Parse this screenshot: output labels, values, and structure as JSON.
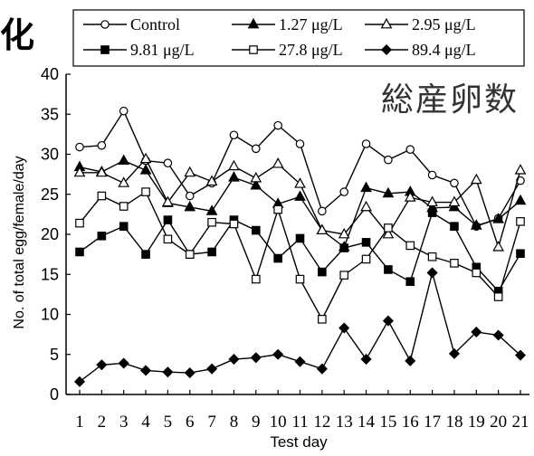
{
  "overlay": {
    "stray_title_fragment": "化",
    "japanese_title": "総産卵数"
  },
  "chart_data": {
    "type": "line",
    "title": "総産卵数",
    "xlabel": "Test day",
    "ylabel": "No. of total egg/female/day",
    "x": [
      1,
      2,
      3,
      4,
      5,
      6,
      7,
      8,
      9,
      10,
      11,
      12,
      13,
      14,
      15,
      16,
      17,
      18,
      19,
      20,
      21
    ],
    "xticks": [
      "1",
      "2",
      "3",
      "4",
      "5",
      "6",
      "7",
      "8",
      "9",
      "10",
      "11",
      "12",
      "13",
      "14",
      "15",
      "16",
      "17",
      "18",
      "19",
      "20",
      "21"
    ],
    "ylim": [
      0,
      40
    ],
    "yticks": [
      "0",
      "5",
      "10",
      "15",
      "20",
      "25",
      "30",
      "35",
      "40"
    ],
    "grid": false,
    "legend_position": "top",
    "series": [
      {
        "name": "Control",
        "marker": "circle-open",
        "values": [
          30.9,
          31.1,
          35.4,
          29.2,
          28.9,
          24.8,
          26.4,
          32.4,
          30.7,
          33.6,
          31.3,
          22.9,
          25.3,
          31.3,
          29.3,
          30.6,
          27.4,
          26.4,
          21.0,
          22.0,
          26.7
        ]
      },
      {
        "name": "1.27 μg/L",
        "marker": "triangle-filled",
        "values": [
          28.4,
          27.8,
          29.2,
          28.0,
          23.9,
          23.4,
          22.9,
          27.1,
          26.1,
          23.8,
          24.7,
          20.5,
          18.4,
          25.8,
          25.1,
          25.3,
          23.3,
          23.4,
          21.1,
          21.9,
          24.2
        ]
      },
      {
        "name": "2.95 μg/L",
        "marker": "triangle-open",
        "values": [
          27.7,
          27.7,
          26.4,
          29.4,
          24.0,
          27.7,
          26.6,
          28.5,
          27.0,
          28.8,
          26.3,
          20.5,
          20.0,
          23.4,
          20.0,
          24.6,
          24.0,
          24.0,
          26.8,
          18.4,
          28.0
        ]
      },
      {
        "name": "9.81 μg/L",
        "marker": "square-filled",
        "values": [
          17.8,
          19.8,
          21.0,
          17.5,
          21.8,
          17.5,
          17.8,
          21.8,
          20.5,
          17.0,
          19.5,
          15.3,
          18.3,
          19.0,
          15.6,
          14.1,
          22.7,
          21.0,
          15.9,
          12.9,
          17.6
        ]
      },
      {
        "name": "27.8 μg/L",
        "marker": "square-open",
        "values": [
          21.4,
          24.8,
          23.5,
          25.3,
          19.4,
          17.5,
          21.5,
          21.3,
          14.4,
          23.1,
          14.4,
          9.4,
          14.9,
          16.9,
          20.8,
          18.6,
          17.2,
          16.4,
          15.2,
          12.2,
          21.6
        ]
      },
      {
        "name": "89.4 μg/L",
        "marker": "diamond-filled",
        "values": [
          1.6,
          3.7,
          3.9,
          3.0,
          2.8,
          2.7,
          3.2,
          4.4,
          4.6,
          5.0,
          4.1,
          3.2,
          8.3,
          4.4,
          9.2,
          4.2,
          15.2,
          5.1,
          7.8,
          7.4,
          4.9
        ]
      }
    ]
  }
}
